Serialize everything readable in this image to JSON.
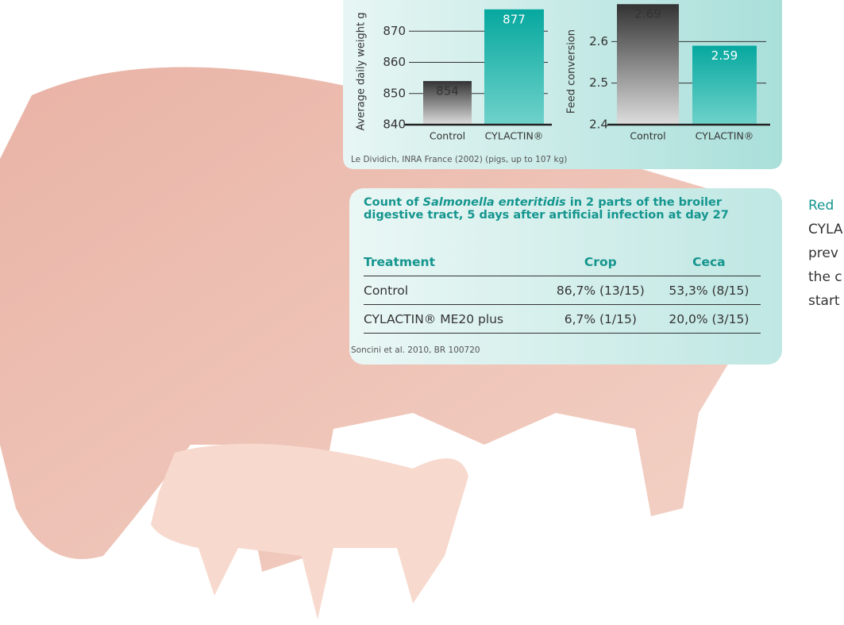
{
  "chart_data": [
    {
      "type": "bar",
      "y_label": "Average daily weight g",
      "categories": [
        "Control",
        "CYLACTIN®"
      ],
      "values": [
        854,
        877
      ],
      "colors": [
        "#555555",
        "#12aea5"
      ],
      "ylim": [
        840,
        880
      ],
      "yticks": [
        840,
        850,
        860,
        870
      ],
      "grid": true
    },
    {
      "type": "bar",
      "y_label": "Feed conversion",
      "categories": [
        "Control",
        "CYLACTIN®"
      ],
      "values": [
        2.69,
        2.59
      ],
      "colors": [
        "#555555",
        "#12aea5"
      ],
      "ylim": [
        2.4,
        2.7
      ],
      "yticks": [
        2.4,
        2.5,
        2.6
      ],
      "grid": true
    }
  ],
  "chart_source": "Le Dividich, INRA France (2002) (pigs, up to 107 kg)",
  "table": {
    "title": [
      "Count of ",
      "Salmonella enteritidis",
      " in 2 parts of the broiler digestive tract, 5 days after artificial infection at day 27"
    ],
    "header": [
      "Treatment",
      "Crop",
      "Ceca"
    ],
    "rows": [
      [
        "Control",
        "86,7% (13/15)",
        "53,3% (8/15)"
      ],
      [
        "CYLACTIN® ME20 plus",
        "6,7% (1/15)",
        "20,0% (3/15)"
      ]
    ],
    "source": "Soncini et al. 2010, BR 100720"
  },
  "side_text": {
    "heading": "Red",
    "lines": [
      "CYLA",
      "prev",
      "the c",
      "start"
    ]
  }
}
